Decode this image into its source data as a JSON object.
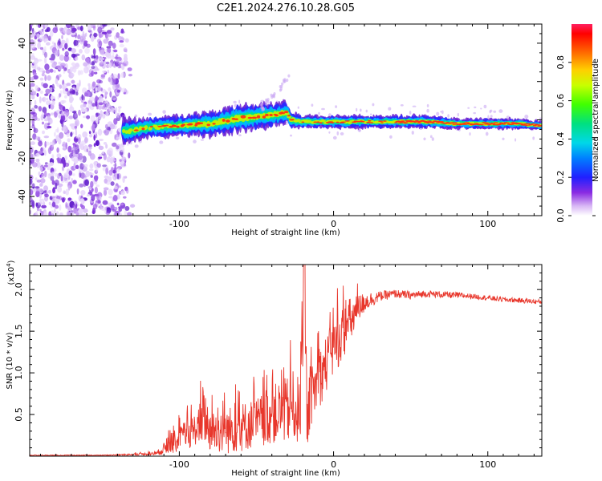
{
  "title": "C2E1.2024.276.10.28.G05",
  "chart_data": [
    {
      "type": "heatmap",
      "name": "spectrogram",
      "xlabel": "Height of straight line (km)",
      "ylabel": "Frequency (Hz)",
      "xlim": [
        -197,
        135
      ],
      "ylim": [
        -50,
        50
      ],
      "x_ticks": [
        -100,
        0,
        100
      ],
      "y_ticks": [
        -40,
        -20,
        0,
        20,
        40
      ],
      "noise_region_x": [
        -197,
        -130
      ],
      "signal_start_x": -136,
      "ridge": {
        "x": [
          -136,
          -120,
          -100,
          -80,
          -60,
          -45,
          -35,
          -30,
          -28,
          -20,
          -10,
          0,
          20,
          40,
          60,
          80,
          100,
          120,
          135
        ],
        "freq": [
          -6,
          -4,
          -3,
          -2,
          1,
          2,
          3,
          4,
          0,
          -1,
          -1,
          -1,
          -1,
          -1,
          -1,
          -2,
          -2,
          -2,
          -3
        ],
        "width": [
          6,
          5,
          5,
          6,
          7,
          6,
          6,
          5,
          4,
          3,
          3,
          3,
          3,
          3,
          3,
          2.5,
          2.5,
          2.5,
          2
        ]
      },
      "colorbar": {
        "label": "Normalized spectral amplitude",
        "range": [
          0,
          1
        ],
        "ticks": [
          0.0,
          0.2,
          0.4,
          0.6,
          0.8
        ],
        "tick_labels": [
          "0.0",
          "0.2",
          "0.4",
          "0.6",
          "0.8"
        ]
      }
    },
    {
      "type": "line",
      "name": "snr",
      "xlabel": "Height of straight line (km)",
      "ylabel": "SNR (10 * v/v)",
      "multiplier_label": "(x10",
      "multiplier_exp": "4",
      "multiplier_close": ")",
      "xlim": [
        -197,
        135
      ],
      "ylim": [
        0,
        2.3
      ],
      "x_ticks": [
        -100,
        0,
        100
      ],
      "y_ticks": [
        0.5,
        1.0,
        1.5,
        2.0
      ],
      "y_tick_labels": [
        "0.5",
        "1.0",
        "1.5",
        "2.0"
      ],
      "color": "#e8372c",
      "series": [
        {
          "name": "SNR",
          "x": [
            -197,
            -150,
            -130,
            -115,
            -105,
            -95,
            -88,
            -84,
            -80,
            -70,
            -60,
            -50,
            -40,
            -30,
            -25,
            -22,
            -19,
            -17,
            -15,
            -10,
            -5,
            0,
            10,
            20,
            30,
            40,
            50,
            60,
            70,
            80,
            90,
            100,
            110,
            120,
            135
          ],
          "values": [
            0.01,
            0.01,
            0.02,
            0.03,
            0.15,
            0.25,
            0.35,
            0.5,
            0.3,
            0.3,
            0.35,
            0.4,
            0.5,
            0.55,
            0.6,
            0.5,
            1.5,
            0.4,
            0.7,
            0.9,
            1.1,
            1.3,
            1.6,
            1.85,
            1.92,
            1.95,
            1.93,
            1.95,
            1.94,
            1.93,
            1.92,
            1.9,
            1.88,
            1.87,
            1.85
          ],
          "noise": [
            0.005,
            0.005,
            0.01,
            0.02,
            0.12,
            0.18,
            0.2,
            0.35,
            0.25,
            0.28,
            0.3,
            0.3,
            0.35,
            0.4,
            0.45,
            0.4,
            0.6,
            0.3,
            0.35,
            0.35,
            0.35,
            0.35,
            0.3,
            0.12,
            0.06,
            0.05,
            0.05,
            0.04,
            0.04,
            0.04,
            0.03,
            0.03,
            0.03,
            0.03,
            0.03
          ]
        }
      ]
    }
  ]
}
